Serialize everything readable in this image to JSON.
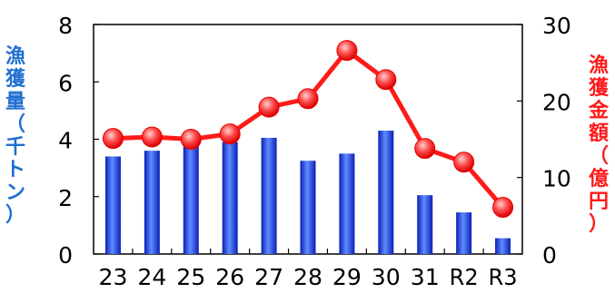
{
  "chart_data": {
    "type": "bar+line",
    "categories": [
      "23",
      "24",
      "25",
      "26",
      "27",
      "28",
      "29",
      "30",
      "31",
      "R2",
      "R3"
    ],
    "series": [
      {
        "name": "漁獲量（千トン）",
        "type": "bar",
        "axis": "left",
        "values": [
          3.4,
          3.6,
          4.2,
          3.9,
          4.05,
          3.25,
          3.5,
          4.3,
          2.05,
          1.45,
          0.55
        ]
      },
      {
        "name": "漁獲金額（億円）",
        "type": "line",
        "axis": "right",
        "values": [
          15.1,
          15.3,
          15.0,
          15.7,
          19.2,
          20.3,
          26.6,
          22.8,
          13.8,
          12.0,
          6.1
        ]
      }
    ],
    "ylabel": "漁獲量（千トン）",
    "y2label": "漁獲金額（億円）",
    "ylim": [
      0,
      8
    ],
    "y2lim": [
      0,
      30
    ],
    "yticks": [
      "0",
      "2",
      "4",
      "6",
      "8"
    ],
    "y2ticks": [
      "0",
      "10",
      "20",
      "30"
    ],
    "grid": false,
    "colors": {
      "bar": "#1e3cf0",
      "line": "#ff1a1a",
      "marker": "#ff3333",
      "left_label": "#1f6fd1",
      "right_label": "#ff1a1a"
    }
  }
}
